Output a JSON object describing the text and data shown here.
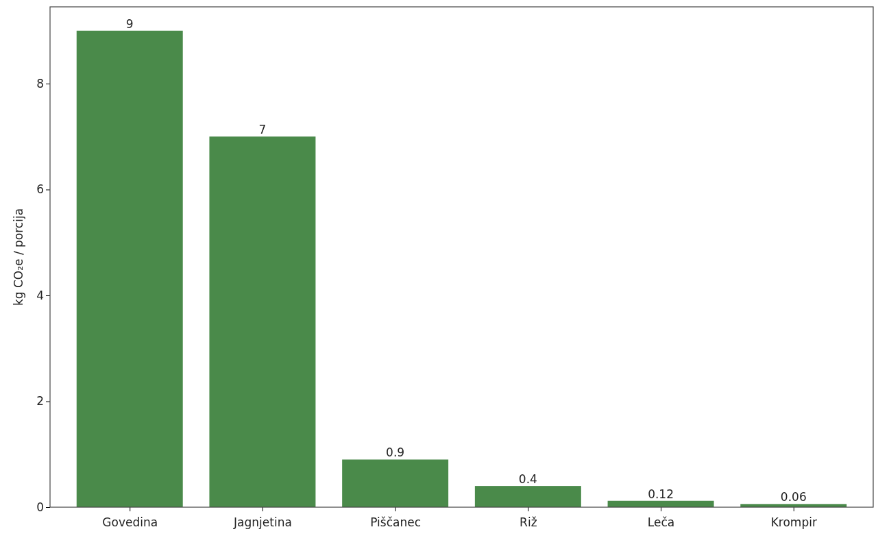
{
  "chart_data": {
    "type": "bar",
    "ylabel": "kg CO₂e / porcija",
    "categories": [
      "Govedina",
      "Jagnjetina",
      "Piščanec",
      "Riž",
      "Leča",
      "Krompir"
    ],
    "values": [
      9,
      7,
      0.9,
      0.4,
      0.12,
      0.06
    ],
    "color": "#4a8a4a",
    "ylim": [
      0,
      9.45
    ],
    "yticks": [
      0,
      2,
      4,
      6,
      8
    ],
    "grid": false,
    "data_labels": true
  }
}
